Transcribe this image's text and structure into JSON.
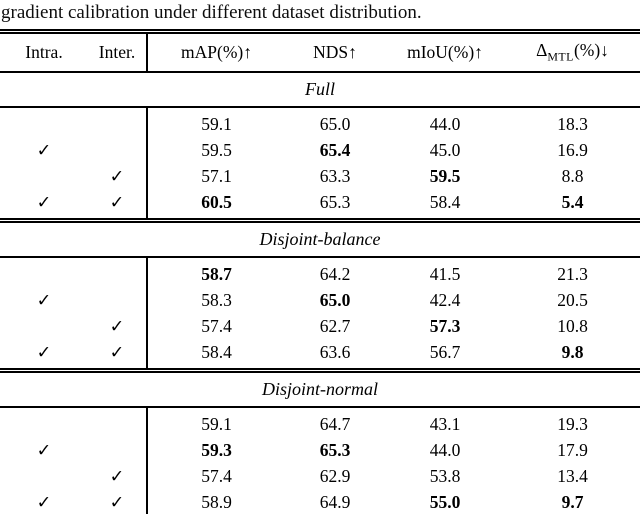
{
  "caption": "gradient calibration under different dataset distribution.",
  "table": {
    "checkmark": "✓",
    "headers": {
      "intra": "Intra.",
      "inter": "Inter.",
      "map": "mAP(%)↑",
      "nds": "NDS↑",
      "miou": "mIoU(%)↑",
      "delta_prefix": "Δ",
      "delta_sub": "MTL",
      "delta_suffix": "(%)↓"
    },
    "sections": [
      {
        "title": "Full",
        "rows": [
          {
            "intra": false,
            "inter": false,
            "values": [
              "59.1",
              "65.0",
              "44.0",
              "18.3"
            ],
            "bold": [
              false,
              false,
              false,
              false
            ]
          },
          {
            "intra": true,
            "inter": false,
            "values": [
              "59.5",
              "65.4",
              "45.0",
              "16.9"
            ],
            "bold": [
              false,
              true,
              false,
              false
            ]
          },
          {
            "intra": false,
            "inter": true,
            "values": [
              "57.1",
              "63.3",
              "59.5",
              "8.8"
            ],
            "bold": [
              false,
              false,
              true,
              false
            ]
          },
          {
            "intra": true,
            "inter": true,
            "values": [
              "60.5",
              "65.3",
              "58.4",
              "5.4"
            ],
            "bold": [
              true,
              false,
              false,
              true
            ]
          }
        ]
      },
      {
        "title": "Disjoint-balance",
        "rows": [
          {
            "intra": false,
            "inter": false,
            "values": [
              "58.7",
              "64.2",
              "41.5",
              "21.3"
            ],
            "bold": [
              true,
              false,
              false,
              false
            ]
          },
          {
            "intra": true,
            "inter": false,
            "values": [
              "58.3",
              "65.0",
              "42.4",
              "20.5"
            ],
            "bold": [
              false,
              true,
              false,
              false
            ]
          },
          {
            "intra": false,
            "inter": true,
            "values": [
              "57.4",
              "62.7",
              "57.3",
              "10.8"
            ],
            "bold": [
              false,
              false,
              true,
              false
            ]
          },
          {
            "intra": true,
            "inter": true,
            "values": [
              "58.4",
              "63.6",
              "56.7",
              "9.8"
            ],
            "bold": [
              false,
              false,
              false,
              true
            ]
          }
        ]
      },
      {
        "title": "Disjoint-normal",
        "rows": [
          {
            "intra": false,
            "inter": false,
            "values": [
              "59.1",
              "64.7",
              "43.1",
              "19.3"
            ],
            "bold": [
              false,
              false,
              false,
              false
            ]
          },
          {
            "intra": true,
            "inter": false,
            "values": [
              "59.3",
              "65.3",
              "44.0",
              "17.9"
            ],
            "bold": [
              true,
              true,
              false,
              false
            ]
          },
          {
            "intra": false,
            "inter": true,
            "values": [
              "57.4",
              "62.9",
              "53.8",
              "13.4"
            ],
            "bold": [
              false,
              false,
              false,
              false
            ]
          },
          {
            "intra": true,
            "inter": true,
            "values": [
              "58.9",
              "64.9",
              "55.0",
              "9.7"
            ],
            "bold": [
              false,
              false,
              true,
              true
            ]
          }
        ]
      }
    ]
  }
}
